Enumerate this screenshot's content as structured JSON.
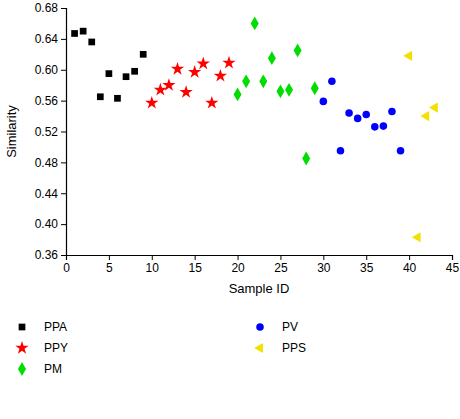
{
  "chart_data": {
    "type": "scatter",
    "x_label": "Sample ID",
    "y_label": "Similarity",
    "xlim": [
      0,
      45
    ],
    "xticks": [
      0,
      5,
      10,
      15,
      20,
      25,
      30,
      35,
      40,
      45
    ],
    "ylim": [
      0.36,
      0.68
    ],
    "yticks": [
      0.36,
      {
        "value": 0.4,
        "label": "0.40"
      },
      0.44,
      0.48,
      0.52,
      0.56,
      {
        "value": 0.6,
        "label": "0.60"
      },
      0.64,
      0.68
    ],
    "legend": "bottom",
    "series": [
      {
        "name": "PPA",
        "color": "#000000",
        "marker": "square",
        "x": [
          1,
          2,
          3,
          4,
          5,
          6,
          7,
          8,
          9
        ],
        "values": [
          0.647,
          0.65,
          0.636,
          0.565,
          0.595,
          0.563,
          0.591,
          0.598,
          0.62
        ]
      },
      {
        "name": "PPY",
        "color": "#ff0000",
        "marker": "star",
        "x": [
          10,
          11,
          12,
          13,
          14,
          15,
          16,
          17,
          18,
          19
        ],
        "values": [
          0.557,
          0.574,
          0.58,
          0.601,
          0.571,
          0.597,
          0.608,
          0.557,
          0.592,
          0.609
        ]
      },
      {
        "name": "PM",
        "color": "#00dd00",
        "marker": "diamond",
        "x": [
          20,
          21,
          22,
          23,
          24,
          25,
          26,
          27,
          28,
          29
        ],
        "values": [
          0.568,
          0.585,
          0.66,
          0.585,
          0.615,
          0.572,
          0.574,
          0.625,
          0.485,
          0.576
        ]
      },
      {
        "name": "PV",
        "color": "#0000ff",
        "marker": "circle",
        "x": [
          30,
          31,
          32,
          33,
          34,
          35,
          36,
          37,
          38,
          39
        ],
        "values": [
          0.559,
          0.585,
          0.495,
          0.544,
          0.537,
          0.542,
          0.526,
          0.527,
          0.546,
          0.495
        ]
      },
      {
        "name": "PPS",
        "color": "#f2e000",
        "marker": "triangle-left",
        "x": [
          40,
          41,
          42,
          43
        ],
        "values": [
          0.618,
          0.383,
          0.54,
          0.551
        ]
      }
    ]
  }
}
